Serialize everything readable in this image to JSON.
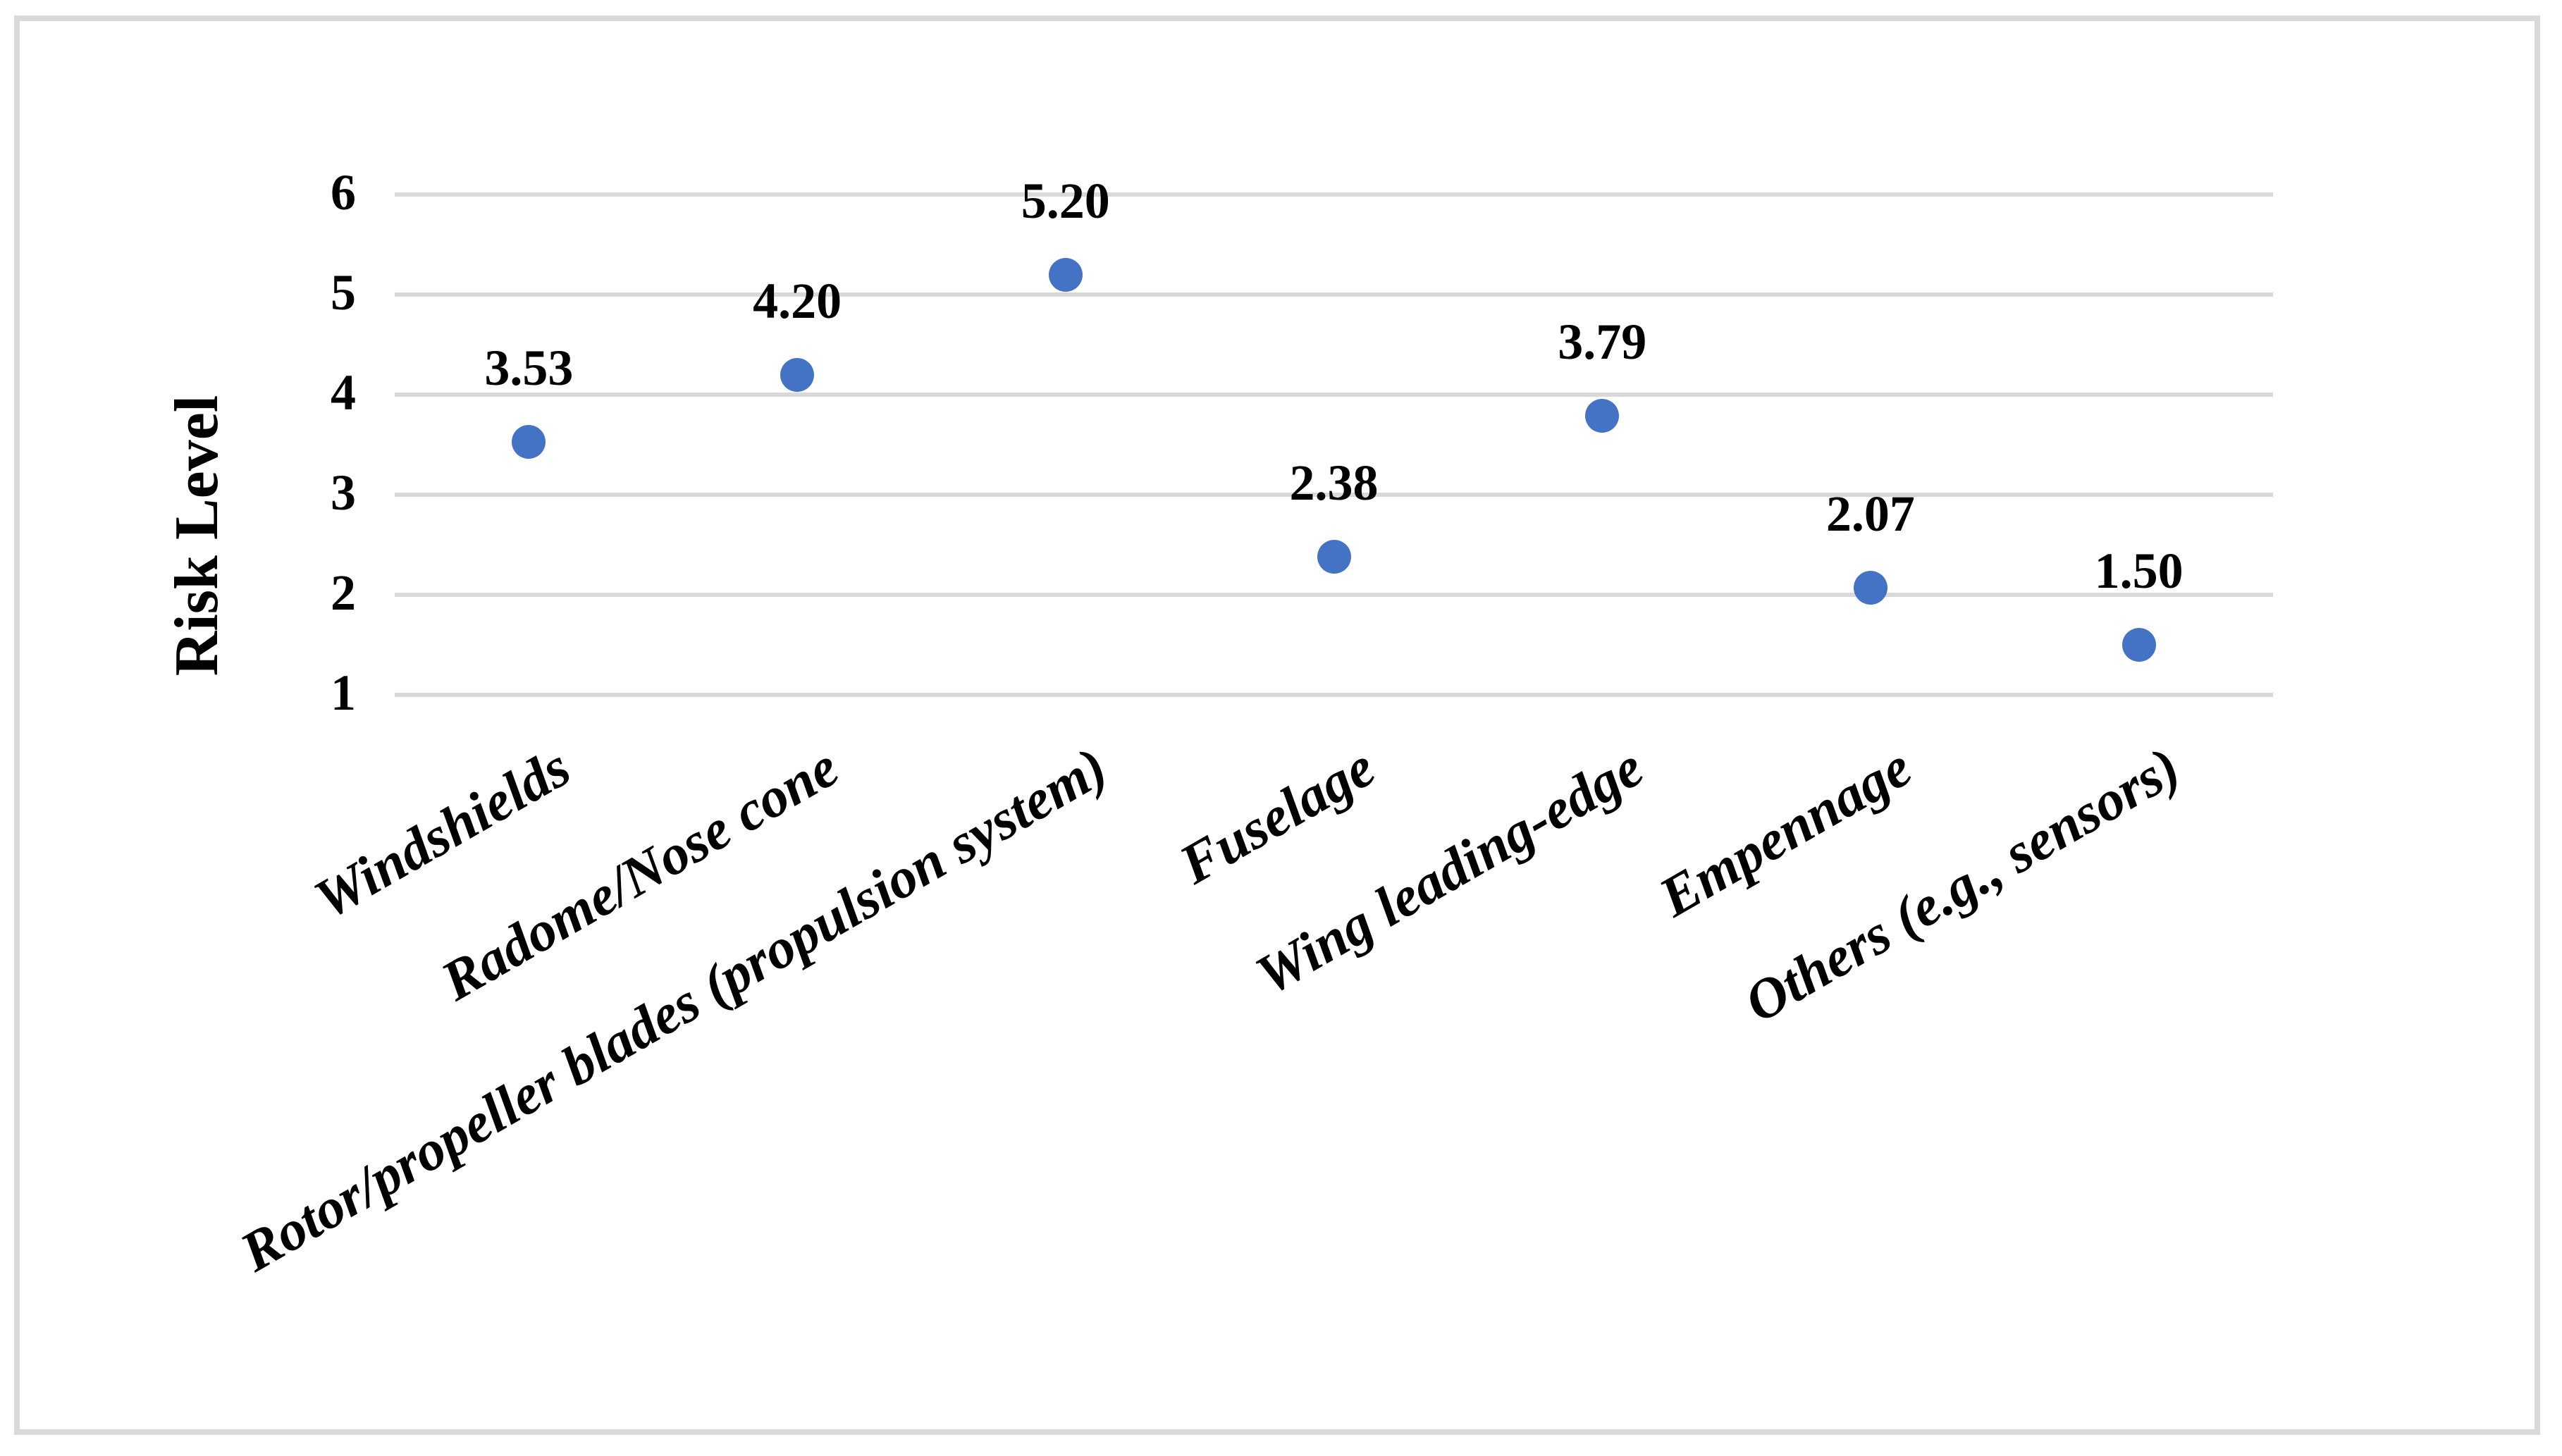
{
  "chart_data": {
    "type": "scatter",
    "title": "",
    "xlabel": "",
    "ylabel": "Risk Level",
    "categories": [
      "Windshields",
      "Radome/Nose cone",
      "Rotor/propeller blades (propulsion system)",
      "Fuselage",
      "Wing leading-edge",
      "Empennage",
      "Others (e.g., sensors)"
    ],
    "values": [
      3.53,
      4.2,
      5.2,
      2.38,
      3.79,
      2.07,
      1.5
    ],
    "value_labels": [
      "3.53",
      "4.20",
      "5.20",
      "2.38",
      "3.79",
      "2.07",
      "1.50"
    ],
    "y_ticks": [
      6,
      5,
      4,
      3,
      2,
      1
    ],
    "ylim": [
      1,
      6
    ],
    "grid": "horizontal-only",
    "legend": "none",
    "category_label_rotation_deg": -30,
    "marker_color": "#4472C4",
    "gridline_color": "#D9D9D9",
    "frame_color": "#D9D9D9",
    "text_color": "#000000"
  }
}
